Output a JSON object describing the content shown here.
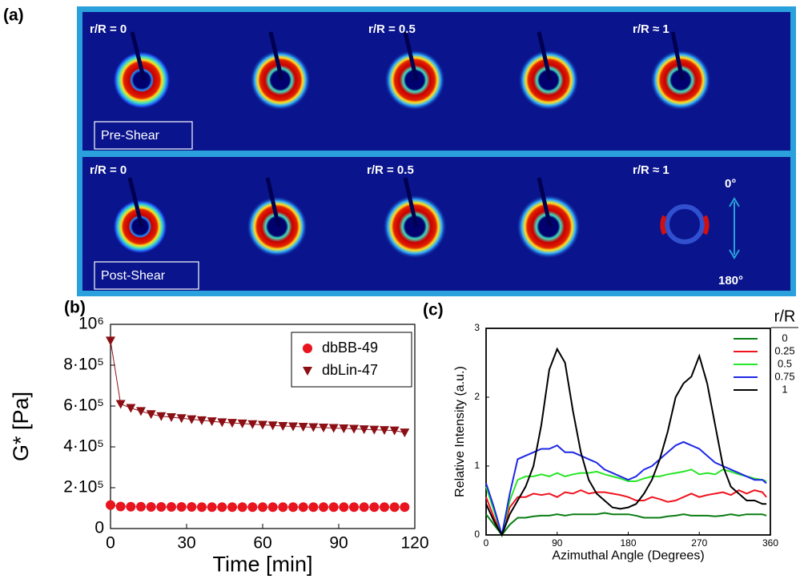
{
  "panel_a": {
    "label": "(a)",
    "pre_shear": {
      "label": "Pre-Shear",
      "positions": [
        "r/R = 0",
        "r/R = 0.5",
        "r/R ≈ 1"
      ]
    },
    "post_shear": {
      "label": "Post-Shear",
      "positions": [
        "r/R = 0",
        "r/R = 0.5",
        "r/R ≈ 1"
      ]
    },
    "direction": {
      "top": "0°",
      "bottom": "180°"
    }
  },
  "chart_data": [
    {
      "type": "line",
      "panel_label": "(b)",
      "xlabel": "Time [min]",
      "ylabel": "G* [Pa]",
      "x": [
        0,
        4,
        8,
        12,
        16,
        20,
        24,
        28,
        32,
        36,
        40,
        44,
        48,
        52,
        56,
        60,
        64,
        68,
        72,
        76,
        80,
        84,
        88,
        92,
        96,
        100,
        104,
        108,
        112,
        116
      ],
      "series": [
        {
          "name": "dbBB-49",
          "color": "#e8141e",
          "marker": "circle",
          "values": [
            115000,
            108000,
            107000,
            107000,
            106000,
            106000,
            106000,
            106000,
            106000,
            105000,
            105000,
            105000,
            105000,
            105000,
            105000,
            105000,
            105000,
            105000,
            105000,
            105000,
            105000,
            105000,
            105000,
            105000,
            105000,
            105000,
            105000,
            105000,
            105000,
            105000
          ]
        },
        {
          "name": "dbLin-47",
          "color": "#8b0f14",
          "marker": "triangle-down",
          "values": [
            920000,
            610000,
            590000,
            575000,
            560000,
            550000,
            545000,
            540000,
            535000,
            530000,
            525000,
            520000,
            517000,
            514000,
            511000,
            508000,
            505000,
            502000,
            500000,
            498000,
            496000,
            494000,
            492000,
            490000,
            488000,
            486000,
            484000,
            482000,
            480000,
            470000
          ]
        }
      ],
      "xlim": [
        0,
        120
      ],
      "xticks": [
        0,
        30,
        60,
        90,
        120
      ],
      "ylim": [
        0,
        1000000
      ],
      "yticks": [
        0,
        {
          "value": 200000,
          "label": "2·10⁵"
        },
        {
          "value": 400000,
          "label": "4·10⁵"
        },
        {
          "value": 600000,
          "label": "6·10⁵"
        },
        {
          "value": 800000,
          "label": "8·10⁵"
        },
        {
          "value": 1000000,
          "label": "10⁶"
        }
      ],
      "legend": "upper right"
    },
    {
      "type": "line",
      "panel_label": "(c)",
      "xlabel": "Azimuthal Angle (Degrees)",
      "ylabel": "Relative Intensity (a.u.)",
      "legend_title": "r/R",
      "x": [
        0,
        10,
        20,
        30,
        40,
        50,
        60,
        70,
        80,
        90,
        100,
        110,
        120,
        130,
        140,
        150,
        160,
        170,
        180,
        190,
        200,
        210,
        220,
        230,
        240,
        250,
        260,
        270,
        280,
        290,
        300,
        310,
        320,
        330,
        340,
        350,
        355
      ],
      "series": [
        {
          "name": "0",
          "color": "#0a7d14",
          "values": [
            0.3,
            0.15,
            0,
            0.15,
            0.25,
            0.25,
            0.27,
            0.28,
            0.28,
            0.3,
            0.28,
            0.3,
            0.3,
            0.3,
            0.3,
            0.32,
            0.3,
            0.3,
            0.3,
            0.28,
            0.25,
            0.25,
            0.25,
            0.27,
            0.28,
            0.3,
            0.28,
            0.28,
            0.28,
            0.27,
            0.28,
            0.3,
            0.28,
            0.3,
            0.3,
            0.3,
            0.28
          ]
        },
        {
          "name": "0.25",
          "color": "#f0141e",
          "values": [
            0.55,
            0.25,
            0,
            0.4,
            0.55,
            0.55,
            0.6,
            0.58,
            0.6,
            0.55,
            0.62,
            0.6,
            0.65,
            0.6,
            0.62,
            0.62,
            0.6,
            0.58,
            0.55,
            0.5,
            0.5,
            0.55,
            0.52,
            0.48,
            0.5,
            0.55,
            0.6,
            0.55,
            0.58,
            0.6,
            0.62,
            0.58,
            0.65,
            0.6,
            0.65,
            0.62,
            0.55
          ]
        },
        {
          "name": "0.5",
          "color": "#28e628",
          "values": [
            0.7,
            0.35,
            0,
            0.5,
            0.8,
            0.85,
            0.85,
            0.88,
            0.85,
            0.9,
            0.85,
            0.88,
            0.9,
            0.9,
            0.92,
            0.88,
            0.85,
            0.82,
            0.78,
            0.78,
            0.82,
            0.85,
            0.85,
            0.88,
            0.9,
            0.92,
            0.95,
            0.88,
            0.9,
            0.88,
            0.95,
            0.92,
            0.88,
            0.85,
            0.82,
            0.8,
            0.78
          ]
        },
        {
          "name": "0.75",
          "color": "#1e28e6",
          "values": [
            0.75,
            0.4,
            0,
            0.6,
            1.1,
            1.15,
            1.2,
            1.25,
            1.25,
            1.3,
            1.2,
            1.2,
            1.15,
            1.1,
            1.05,
            0.95,
            0.9,
            0.85,
            0.8,
            0.85,
            0.95,
            1.0,
            1.1,
            1.2,
            1.3,
            1.35,
            1.3,
            1.25,
            1.15,
            1.05,
            1.0,
            0.95,
            0.9,
            0.85,
            0.8,
            0.8,
            0.75
          ]
        },
        {
          "name": "1",
          "color": "#000000",
          "values": [
            0.45,
            0.2,
            0,
            0.3,
            0.5,
            0.7,
            1.0,
            1.6,
            2.4,
            2.7,
            2.5,
            1.8,
            1.2,
            0.8,
            0.6,
            0.5,
            0.4,
            0.38,
            0.4,
            0.45,
            0.6,
            0.8,
            1.1,
            1.5,
            2.0,
            2.2,
            2.3,
            2.6,
            2.2,
            1.6,
            1.0,
            0.7,
            0.6,
            0.5,
            0.5,
            0.45,
            0.45
          ]
        }
      ],
      "xlim": [
        0,
        360
      ],
      "xticks": [
        0,
        90,
        180,
        270,
        360
      ],
      "ylim": [
        0,
        3
      ],
      "yticks": [
        0,
        1,
        2,
        3
      ],
      "legend": "right"
    }
  ]
}
